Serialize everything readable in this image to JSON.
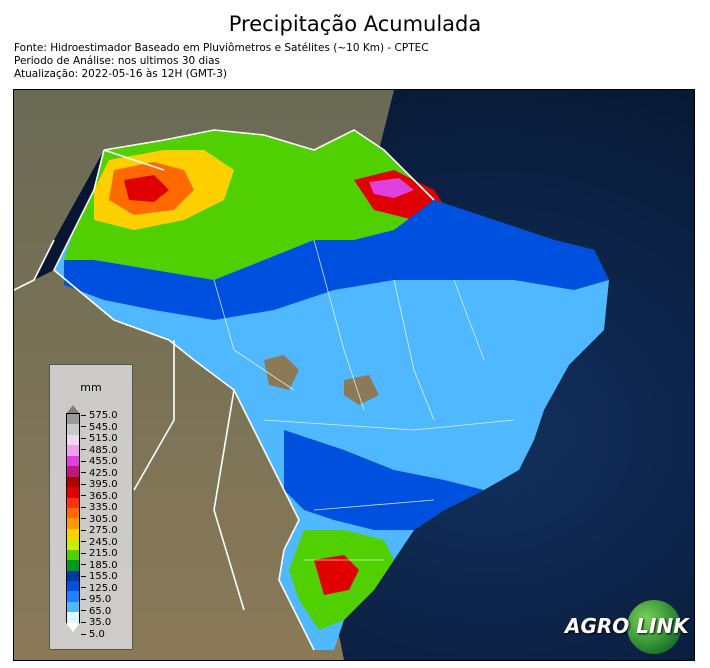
{
  "title": "Precipitação Acumulada",
  "meta": {
    "source": "Fonte: Hidroestimador Baseado em Pluviômetros e Satélites (~10 Km) - CPTEC",
    "period": "Periodo de Análise: nos ultimos 30 dias",
    "updated": "Atualização: 2022-05-16 às 12H (GMT-3)"
  },
  "legend": {
    "unit": "mm",
    "labels": [
      "575.0",
      "545.0",
      "515.0",
      "485.0",
      "455.0",
      "425.0",
      "395.0",
      "365.0",
      "335.0",
      "305.0",
      "275.0",
      "245.0",
      "215.0",
      "185.0",
      "155.0",
      "125.0",
      "95.0",
      "65.0",
      "35.0",
      "5.0"
    ],
    "colors": [
      "#9a9a9a",
      "#c8c8c8",
      "#f0d8f0",
      "#f0a0f0",
      "#e040e0",
      "#c01880",
      "#b00000",
      "#e00000",
      "#ff3010",
      "#ff6a00",
      "#ff9a00",
      "#ffd000",
      "#c8ee00",
      "#50d000",
      "#009a20",
      "#003aa0",
      "#0050e0",
      "#2080ff",
      "#50b8ff",
      "#e0f8ff"
    ]
  },
  "logo": {
    "text_a": "AGRO",
    "text_b": "LINK"
  }
}
